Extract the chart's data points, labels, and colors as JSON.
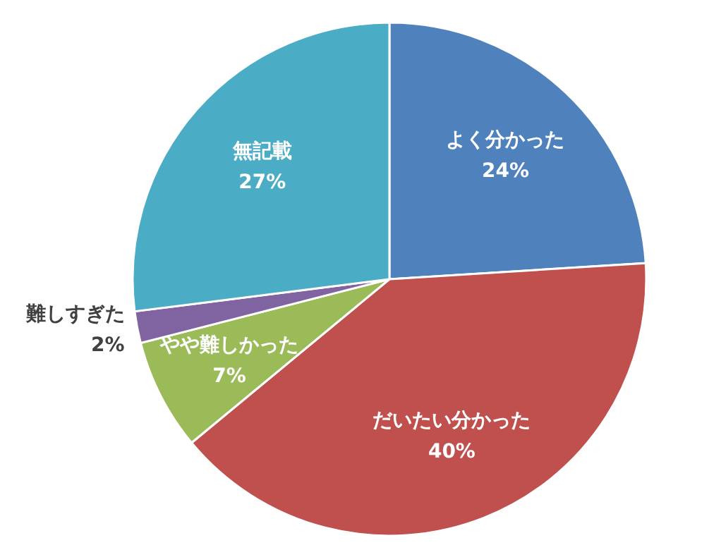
{
  "chart_data": {
    "type": "pie",
    "categories": [
      "よく分かった",
      "だいたい分かった",
      "やや難しかった",
      "難しすぎた",
      "無記載"
    ],
    "values": [
      24,
      40,
      7,
      2,
      27
    ],
    "colors": [
      "#4f81bd",
      "#c0504d",
      "#9bbb59",
      "#8064a2",
      "#4bacc6"
    ],
    "value_labels": [
      "24%",
      "40%",
      "7%",
      "2%",
      "27%"
    ]
  }
}
